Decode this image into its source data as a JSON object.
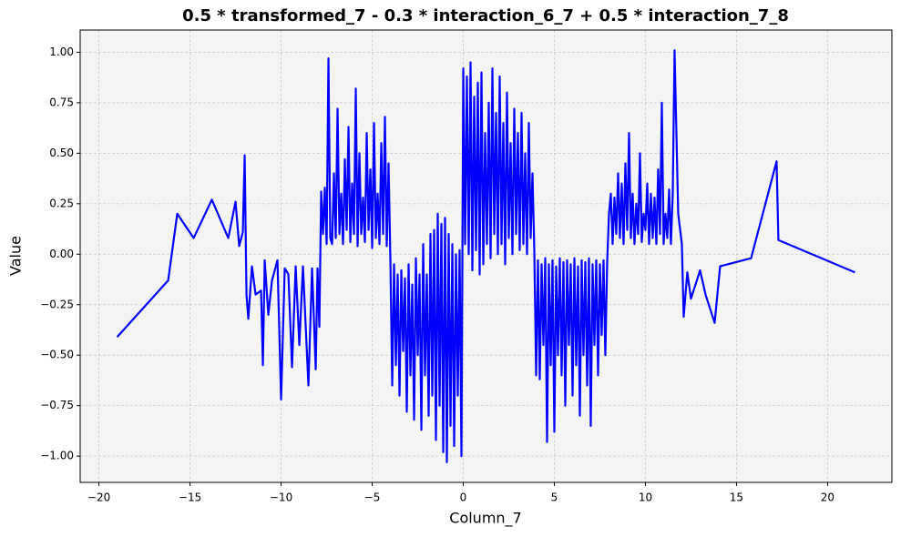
{
  "chart_data": {
    "type": "line",
    "title": "0.5 * transformed_7 - 0.3 * interaction_6_7 + 0.5 * interaction_7_8",
    "x_label": "Column_7",
    "y_label": "Value",
    "color": "#0000ff",
    "grid": true,
    "x": [
      -19,
      -16.2,
      -15.7,
      -14.8,
      -13.8,
      -12.9,
      -12.5,
      -12.3,
      -12.1,
      -12.0,
      -11.9,
      -11.8,
      -11.6,
      -11.4,
      -11.1,
      -11.0,
      -10.9,
      -10.7,
      -10.5,
      -10.2,
      -10.0,
      -9.8,
      -9.6,
      -9.4,
      -9.2,
      -9.0,
      -8.8,
      -8.5,
      -8.3,
      -8.1,
      -8.0,
      -7.9,
      -7.8,
      -7.7,
      -7.6,
      -7.5,
      -7.4,
      -7.3,
      -7.2,
      -7.1,
      -7.0,
      -6.9,
      -6.8,
      -6.7,
      -6.6,
      -6.5,
      -6.4,
      -6.3,
      -6.2,
      -6.1,
      -6.0,
      -5.9,
      -5.8,
      -5.7,
      -5.6,
      -5.5,
      -5.4,
      -5.3,
      -5.2,
      -5.1,
      -5.0,
      -4.9,
      -4.8,
      -4.7,
      -4.6,
      -4.5,
      -4.4,
      -4.3,
      -4.2,
      -4.1,
      -4.0,
      -3.9,
      -3.8,
      -3.7,
      -3.6,
      -3.5,
      -3.4,
      -3.3,
      -3.2,
      -3.1,
      -3.0,
      -2.9,
      -2.8,
      -2.7,
      -2.6,
      -2.5,
      -2.4,
      -2.3,
      -2.2,
      -2.1,
      -2.0,
      -1.9,
      -1.8,
      -1.7,
      -1.6,
      -1.5,
      -1.4,
      -1.3,
      -1.2,
      -1.1,
      -1.0,
      -0.9,
      -0.8,
      -0.7,
      -0.6,
      -0.5,
      -0.4,
      -0.3,
      -0.2,
      -0.1,
      0.0,
      0.1,
      0.2,
      0.3,
      0.4,
      0.5,
      0.6,
      0.7,
      0.8,
      0.9,
      1.0,
      1.1,
      1.2,
      1.3,
      1.4,
      1.5,
      1.6,
      1.7,
      1.8,
      1.9,
      2.0,
      2.1,
      2.2,
      2.3,
      2.4,
      2.5,
      2.6,
      2.7,
      2.8,
      2.9,
      3.0,
      3.1,
      3.2,
      3.3,
      3.4,
      3.5,
      3.6,
      3.7,
      3.8,
      3.9,
      4.0,
      4.1,
      4.2,
      4.3,
      4.4,
      4.5,
      4.6,
      4.7,
      4.8,
      4.9,
      5.0,
      5.1,
      5.2,
      5.3,
      5.4,
      5.5,
      5.6,
      5.7,
      5.8,
      5.9,
      6.0,
      6.1,
      6.2,
      6.3,
      6.4,
      6.5,
      6.6,
      6.7,
      6.8,
      6.9,
      7.0,
      7.1,
      7.2,
      7.3,
      7.4,
      7.5,
      7.6,
      7.7,
      7.8,
      7.9,
      8.0,
      8.1,
      8.2,
      8.3,
      8.4,
      8.5,
      8.6,
      8.7,
      8.8,
      8.9,
      9.0,
      9.1,
      9.2,
      9.3,
      9.4,
      9.5,
      9.6,
      9.7,
      9.8,
      9.9,
      10.0,
      10.1,
      10.2,
      10.3,
      10.4,
      10.5,
      10.6,
      10.7,
      10.8,
      10.9,
      11.0,
      11.1,
      11.2,
      11.3,
      11.4,
      11.5,
      11.6,
      11.8,
      12.0,
      12.1,
      12.3,
      12.5,
      13.0,
      13.3,
      13.8,
      14.1,
      15.8,
      17.2,
      17.3,
      21.5
    ],
    "values": [
      -0.41,
      -0.13,
      0.2,
      0.08,
      0.27,
      0.08,
      0.26,
      0.04,
      0.11,
      0.49,
      -0.2,
      -0.32,
      -0.06,
      -0.2,
      -0.18,
      -0.55,
      -0.03,
      -0.3,
      -0.13,
      -0.03,
      -0.72,
      -0.07,
      -0.1,
      -0.56,
      -0.06,
      -0.45,
      -0.06,
      -0.65,
      -0.07,
      -0.57,
      -0.07,
      -0.36,
      0.31,
      0.1,
      0.33,
      0.05,
      0.97,
      0.08,
      0.05,
      0.4,
      0.08,
      0.72,
      0.1,
      0.3,
      0.05,
      0.47,
      0.12,
      0.63,
      0.06,
      0.35,
      0.1,
      0.82,
      0.04,
      0.5,
      0.1,
      0.28,
      0.06,
      0.6,
      0.12,
      0.42,
      0.03,
      0.65,
      0.08,
      0.3,
      0.05,
      0.55,
      0.1,
      0.68,
      0.04,
      0.45,
      -0.03,
      -0.65,
      -0.05,
      -0.55,
      -0.1,
      -0.7,
      -0.08,
      -0.48,
      -0.12,
      -0.78,
      -0.05,
      -0.6,
      -0.15,
      -0.82,
      -0.02,
      -0.5,
      -0.1,
      -0.87,
      0.05,
      -0.6,
      -0.1,
      -0.8,
      0.1,
      -0.7,
      0.12,
      -0.92,
      0.2,
      -0.75,
      0.15,
      -0.98,
      0.18,
      -1.03,
      0.1,
      -0.85,
      0.05,
      -0.95,
      0.0,
      -0.7,
      0.02,
      -1.0,
      0.92,
      0.05,
      0.88,
      0.0,
      0.95,
      -0.08,
      0.78,
      0.02,
      0.85,
      -0.1,
      0.9,
      -0.05,
      0.6,
      0.05,
      0.75,
      -0.02,
      0.92,
      0.1,
      0.7,
      0.0,
      0.88,
      0.05,
      0.65,
      -0.05,
      0.8,
      0.08,
      0.55,
      0.0,
      0.72,
      0.1,
      0.6,
      0.02,
      0.7,
      0.05,
      0.5,
      0.0,
      0.65,
      0.08,
      0.4,
      0.02,
      -0.6,
      -0.03,
      -0.62,
      -0.05,
      -0.45,
      -0.02,
      -0.93,
      -0.05,
      -0.55,
      -0.03,
      -0.88,
      -0.06,
      -0.5,
      -0.02,
      -0.6,
      -0.04,
      -0.75,
      -0.03,
      -0.45,
      -0.05,
      -0.7,
      -0.02,
      -0.55,
      -0.06,
      -0.8,
      -0.03,
      -0.5,
      -0.04,
      -0.65,
      -0.02,
      -0.85,
      -0.05,
      -0.45,
      -0.03,
      -0.6,
      -0.05,
      -0.4,
      -0.03,
      -0.5,
      -0.04,
      0.2,
      0.3,
      0.05,
      0.28,
      0.1,
      0.4,
      0.08,
      0.35,
      0.05,
      0.45,
      0.12,
      0.6,
      0.08,
      0.3,
      0.05,
      0.25,
      0.1,
      0.5,
      0.06,
      0.2,
      0.12,
      0.35,
      0.05,
      0.3,
      0.08,
      0.28,
      0.05,
      0.42,
      0.1,
      0.75,
      0.05,
      0.2,
      0.08,
      0.32,
      0.05,
      0.3,
      1.01,
      0.2,
      0.05,
      -0.31,
      -0.09,
      -0.22,
      -0.08,
      -0.2,
      -0.34,
      -0.06,
      -0.02,
      0.46,
      0.07,
      -0.09
    ],
    "xlim": [
      -21.03,
      23.53
    ],
    "xticks": [
      {
        "value": -20,
        "label": "−20"
      },
      {
        "value": -15,
        "label": "−15"
      },
      {
        "value": -10,
        "label": "−10"
      },
      {
        "value": -5,
        "label": "−5"
      },
      0,
      5,
      10,
      15,
      20
    ],
    "ylim": [
      -1.13,
      1.11
    ],
    "yticks": [
      {
        "value": -1,
        "label": "−1.00"
      },
      {
        "value": -0.75,
        "label": "−0.75"
      },
      {
        "value": -0.5,
        "label": "−0.50"
      },
      {
        "value": -0.25,
        "label": "−0.25"
      },
      {
        "value": 0,
        "label": "0.00"
      },
      {
        "value": 0.25,
        "label": "0.25"
      },
      {
        "value": 0.5,
        "label": "0.50"
      },
      {
        "value": 0.75,
        "label": "0.75"
      },
      {
        "value": 1,
        "label": "1.00"
      }
    ]
  }
}
